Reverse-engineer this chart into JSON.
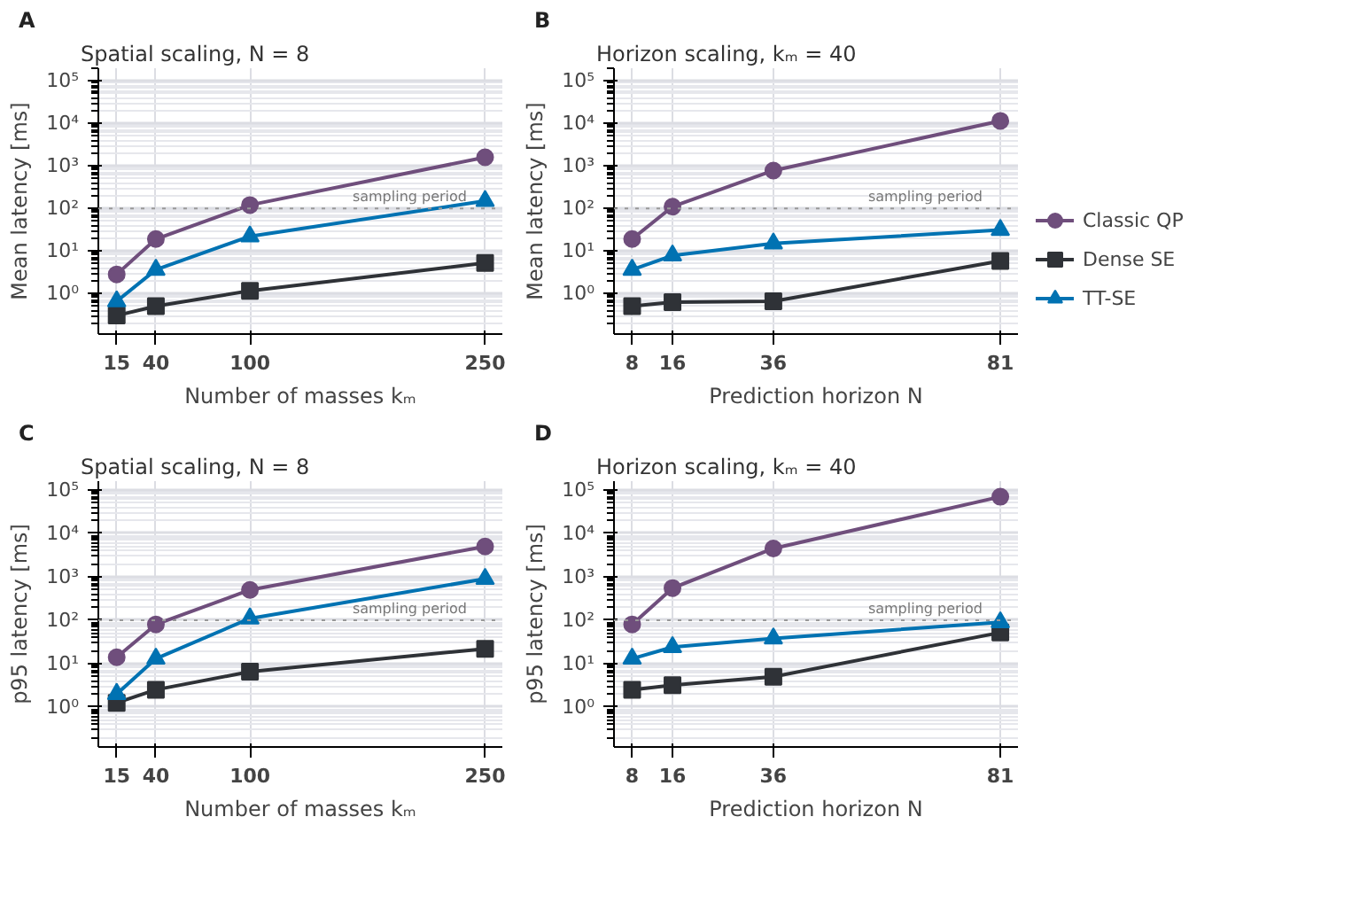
{
  "chart_data": [
    {
      "type": "line",
      "title": "A",
      "subtitle": "Spatial scaling, N = 8",
      "xlabel": "Number of masses kₘ",
      "ylabel": "Mean latency [ms]",
      "x": [
        15,
        40,
        100,
        250
      ],
      "xlim": [
        3.3,
        261
      ],
      "xticks": [
        15,
        40,
        100,
        250
      ],
      "ylim": [
        0.11,
        200000
      ],
      "log": "y",
      "yticks": [
        {
          "value": 1,
          "label": "10⁰"
        },
        {
          "value": 10,
          "label": "10¹"
        },
        {
          "value": 100,
          "label": "10²"
        },
        {
          "value": 1000,
          "label": "10³"
        },
        {
          "value": 10000,
          "label": "10⁴"
        },
        {
          "value": 100000,
          "label": "10⁵"
        }
      ],
      "grid": true,
      "legend": false,
      "ref_lines": [
        {
          "axis": "y",
          "value": 100,
          "label": "sampling period",
          "color": "#999999",
          "line_style": "dotted"
        }
      ],
      "series": [
        {
          "color": "#6f4e7c",
          "marker": "circle",
          "values": [
            2.8,
            19,
            120,
            1600
          ]
        },
        {
          "color": "#2f3237",
          "marker": "square",
          "values": [
            0.3,
            0.5,
            1.15,
            5.2
          ]
        },
        {
          "color": "#0072b2",
          "marker": "triangle",
          "values": [
            0.65,
            3.6,
            22,
            150
          ]
        }
      ]
    },
    {
      "type": "line",
      "title": "B",
      "subtitle": "Horizon scaling, kₘ = 40",
      "xlabel": "Prediction horizon N",
      "ylabel": "Mean latency [ms]",
      "x": [
        8,
        16,
        36,
        81
      ],
      "xlim": [
        4.4,
        84.5
      ],
      "xticks": [
        8,
        16,
        36,
        81
      ],
      "ylim": [
        0.11,
        200000
      ],
      "log": "y",
      "yticks": [
        {
          "value": 1,
          "label": "10⁰"
        },
        {
          "value": 10,
          "label": "10¹"
        },
        {
          "value": 100,
          "label": "10²"
        },
        {
          "value": 1000,
          "label": "10³"
        },
        {
          "value": 10000,
          "label": "10⁴"
        },
        {
          "value": 100000,
          "label": "10⁵"
        }
      ],
      "grid": true,
      "legend": "right",
      "ref_lines": [
        {
          "axis": "y",
          "value": 100,
          "label": "sampling period",
          "color": "#999999",
          "line_style": "dotted"
        }
      ],
      "series": [
        {
          "name": "Classic QP",
          "color": "#6f4e7c",
          "marker": "circle",
          "values": [
            19,
            110,
            780,
            11500
          ]
        },
        {
          "name": "Dense SE",
          "color": "#2f3237",
          "marker": "square",
          "values": [
            0.5,
            0.62,
            0.65,
            5.8
          ]
        },
        {
          "name": "TT-SE",
          "color": "#0072b2",
          "marker": "triangle",
          "values": [
            3.6,
            7.8,
            15,
            31
          ]
        }
      ]
    },
    {
      "type": "line",
      "title": "C",
      "subtitle": "Spatial scaling, N = 8",
      "xlabel": "Number of masses kₘ",
      "ylabel": "p95 latency [ms]",
      "x": [
        15,
        40,
        100,
        250
      ],
      "xlim": [
        3.3,
        261
      ],
      "xticks": [
        15,
        40,
        100,
        250
      ],
      "ylim": [
        0.12,
        160000
      ],
      "log": "y",
      "yticks": [
        {
          "value": 1,
          "label": "10⁰"
        },
        {
          "value": 10,
          "label": "10¹"
        },
        {
          "value": 100,
          "label": "10²"
        },
        {
          "value": 1000,
          "label": "10³"
        },
        {
          "value": 10000,
          "label": "10⁴"
        },
        {
          "value": 100000,
          "label": "10⁵"
        }
      ],
      "grid": true,
      "legend": false,
      "ref_lines": [
        {
          "axis": "y",
          "value": 100,
          "label": "sampling period",
          "color": "#999999",
          "line_style": "dotted"
        }
      ],
      "series": [
        {
          "color": "#6f4e7c",
          "marker": "circle",
          "values": [
            14,
            80,
            500,
            5000
          ]
        },
        {
          "color": "#2f3237",
          "marker": "square",
          "values": [
            1.25,
            2.5,
            6.5,
            22
          ]
        },
        {
          "color": "#0072b2",
          "marker": "triangle",
          "values": [
            2.0,
            13,
            110,
            900
          ]
        }
      ]
    },
    {
      "type": "line",
      "title": "D",
      "subtitle": "Horizon scaling, kₘ = 40",
      "xlabel": "Prediction horizon N",
      "ylabel": "p95 latency [ms]",
      "x": [
        8,
        16,
        36,
        81
      ],
      "xlim": [
        4.4,
        84.5
      ],
      "xticks": [
        8,
        16,
        36,
        81
      ],
      "ylim": [
        0.12,
        160000
      ],
      "log": "y",
      "yticks": [
        {
          "value": 1,
          "label": "10⁰"
        },
        {
          "value": 10,
          "label": "10¹"
        },
        {
          "value": 100,
          "label": "10²"
        },
        {
          "value": 1000,
          "label": "10³"
        },
        {
          "value": 10000,
          "label": "10⁴"
        },
        {
          "value": 100000,
          "label": "10⁵"
        }
      ],
      "grid": true,
      "legend": false,
      "ref_lines": [
        {
          "axis": "y",
          "value": 100,
          "label": "sampling period",
          "color": "#999999",
          "line_style": "dotted"
        }
      ],
      "series": [
        {
          "color": "#6f4e7c",
          "marker": "circle",
          "values": [
            80,
            550,
            4500,
            70000
          ]
        },
        {
          "color": "#2f3237",
          "marker": "square",
          "values": [
            2.5,
            3.2,
            5,
            52
          ]
        },
        {
          "color": "#0072b2",
          "marker": "triangle",
          "values": [
            13,
            24,
            38,
            90
          ]
        }
      ]
    }
  ]
}
